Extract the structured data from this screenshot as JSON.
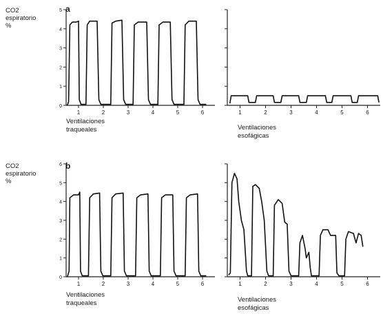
{
  "figure": {
    "row_a": {
      "y_label": "CO2\nespiratorio\n%",
      "panel_label": "a"
    },
    "row_b": {
      "y_label": "CO2\nespiratorio\n%",
      "panel_label": "b"
    }
  },
  "chart_data": [
    {
      "id": "a-left",
      "type": "line",
      "xlabel": "Ventilaciones\ntraqueales",
      "ylabel": "CO2 espiratorio %",
      "xlim": [
        0.5,
        6.5
      ],
      "ylim": [
        0,
        5
      ],
      "x_ticks": [
        1,
        2,
        3,
        4,
        5,
        6
      ],
      "y_ticks": [
        0,
        1,
        2,
        3,
        4,
        5
      ],
      "y_tick_labels": [
        "0",
        "1",
        "2",
        "3",
        "4",
        "5"
      ],
      "series": [
        {
          "values": [
            [
              0.55,
              0
            ],
            [
              0.6,
              0.2
            ],
            [
              0.65,
              4.2
            ],
            [
              0.75,
              4.35
            ],
            [
              0.9,
              4.35
            ],
            [
              1.0,
              4.4
            ],
            [
              1.03,
              0.3
            ],
            [
              1.1,
              0.05
            ],
            [
              1.3,
              0.05
            ],
            [
              1.35,
              4.2
            ],
            [
              1.45,
              4.4
            ],
            [
              1.75,
              4.4
            ],
            [
              1.82,
              0.3
            ],
            [
              1.9,
              0.05
            ],
            [
              2.3,
              0.05
            ],
            [
              2.35,
              4.3
            ],
            [
              2.5,
              4.4
            ],
            [
              2.75,
              4.45
            ],
            [
              2.82,
              0.3
            ],
            [
              2.9,
              0.05
            ],
            [
              3.2,
              0.05
            ],
            [
              3.25,
              4.2
            ],
            [
              3.4,
              4.35
            ],
            [
              3.75,
              4.35
            ],
            [
              3.82,
              0.3
            ],
            [
              3.9,
              0.05
            ],
            [
              4.2,
              0.05
            ],
            [
              4.25,
              4.2
            ],
            [
              4.4,
              4.35
            ],
            [
              4.7,
              4.35
            ],
            [
              4.77,
              0.3
            ],
            [
              4.85,
              0.05
            ],
            [
              5.25,
              0.05
            ],
            [
              5.3,
              4.2
            ],
            [
              5.45,
              4.4
            ],
            [
              5.75,
              4.4
            ],
            [
              5.82,
              0.3
            ],
            [
              5.9,
              0.05
            ],
            [
              6.1,
              0.05
            ],
            [
              6.15,
              0.05
            ]
          ]
        }
      ]
    },
    {
      "id": "a-right",
      "type": "line",
      "xlabel": "Ventilaciones\nesofágicas",
      "ylabel": "",
      "xlim": [
        0.5,
        6.5
      ],
      "ylim": [
        0,
        5
      ],
      "x_ticks": [
        1,
        2,
        3,
        4,
        5,
        6
      ],
      "y_ticks": [
        0,
        1,
        2,
        3,
        4,
        5
      ],
      "y_tick_labels": [],
      "series": [
        {
          "values": [
            [
              0.6,
              0.1
            ],
            [
              0.65,
              0.5
            ],
            [
              1.3,
              0.5
            ],
            [
              1.35,
              0.15
            ],
            [
              1.6,
              0.15
            ],
            [
              1.65,
              0.5
            ],
            [
              2.3,
              0.5
            ],
            [
              2.35,
              0.15
            ],
            [
              2.6,
              0.15
            ],
            [
              2.65,
              0.5
            ],
            [
              3.3,
              0.5
            ],
            [
              3.35,
              0.15
            ],
            [
              3.6,
              0.15
            ],
            [
              3.65,
              0.5
            ],
            [
              4.35,
              0.5
            ],
            [
              4.4,
              0.15
            ],
            [
              4.6,
              0.15
            ],
            [
              4.65,
              0.5
            ],
            [
              5.35,
              0.5
            ],
            [
              5.4,
              0.15
            ],
            [
              5.6,
              0.15
            ],
            [
              5.65,
              0.5
            ],
            [
              6.4,
              0.5
            ],
            [
              6.45,
              0.15
            ]
          ]
        }
      ]
    },
    {
      "id": "b-left",
      "type": "line",
      "xlabel": "Ventilaciones\ntraqueales",
      "ylabel": "CO2 espiratorio %",
      "xlim": [
        0.5,
        6.5
      ],
      "ylim": [
        0,
        6
      ],
      "x_ticks": [
        1,
        2,
        3,
        4,
        5,
        6
      ],
      "y_ticks": [
        0,
        1,
        2,
        3,
        4,
        5,
        6
      ],
      "y_tick_labels": [
        "0",
        "1",
        "2",
        "3",
        "4",
        "5",
        "6"
      ],
      "series": [
        {
          "values": [
            [
              0.55,
              0
            ],
            [
              0.62,
              0.3
            ],
            [
              0.65,
              4.2
            ],
            [
              0.8,
              4.35
            ],
            [
              1.0,
              4.35
            ],
            [
              1.05,
              4.5
            ],
            [
              1.08,
              0.3
            ],
            [
              1.15,
              0.05
            ],
            [
              1.4,
              0.05
            ],
            [
              1.45,
              4.2
            ],
            [
              1.6,
              4.4
            ],
            [
              1.85,
              4.45
            ],
            [
              1.9,
              0.3
            ],
            [
              1.98,
              0.05
            ],
            [
              2.3,
              0.05
            ],
            [
              2.35,
              4.2
            ],
            [
              2.5,
              4.4
            ],
            [
              2.8,
              4.45
            ],
            [
              2.85,
              0.3
            ],
            [
              2.93,
              0.05
            ],
            [
              3.3,
              0.05
            ],
            [
              3.35,
              4.2
            ],
            [
              3.5,
              4.35
            ],
            [
              3.8,
              4.4
            ],
            [
              3.85,
              0.3
            ],
            [
              3.93,
              0.05
            ],
            [
              4.3,
              0.05
            ],
            [
              4.35,
              4.2
            ],
            [
              4.5,
              4.35
            ],
            [
              4.8,
              4.35
            ],
            [
              4.85,
              0.3
            ],
            [
              4.93,
              0.05
            ],
            [
              5.3,
              0.05
            ],
            [
              5.35,
              4.2
            ],
            [
              5.5,
              4.35
            ],
            [
              5.8,
              4.4
            ],
            [
              5.85,
              0.3
            ],
            [
              5.93,
              0.05
            ],
            [
              6.1,
              0.05
            ],
            [
              6.15,
              0.05
            ]
          ]
        }
      ]
    },
    {
      "id": "b-right",
      "type": "line",
      "xlabel": "Ventilaciones\nesofágicas",
      "ylabel": "",
      "xlim": [
        0.5,
        6.5
      ],
      "ylim": [
        0,
        6
      ],
      "x_ticks": [
        1,
        2,
        3,
        4,
        5,
        6
      ],
      "y_ticks": [
        0,
        1,
        2,
        3,
        4,
        5,
        6
      ],
      "y_tick_labels": [],
      "series": [
        {
          "values": [
            [
              0.55,
              0.1
            ],
            [
              0.62,
              0.2
            ],
            [
              0.68,
              5.0
            ],
            [
              0.78,
              5.5
            ],
            [
              0.88,
              5.2
            ],
            [
              0.95,
              4.0
            ],
            [
              1.05,
              3.0
            ],
            [
              1.15,
              2.5
            ],
            [
              1.25,
              0.3
            ],
            [
              1.3,
              0.05
            ],
            [
              1.45,
              0.05
            ],
            [
              1.5,
              4.8
            ],
            [
              1.6,
              4.9
            ],
            [
              1.75,
              4.7
            ],
            [
              1.85,
              4.0
            ],
            [
              1.95,
              3.0
            ],
            [
              2.05,
              0.3
            ],
            [
              2.12,
              0.05
            ],
            [
              2.3,
              0.05
            ],
            [
              2.35,
              3.8
            ],
            [
              2.5,
              4.1
            ],
            [
              2.65,
              3.9
            ],
            [
              2.75,
              2.9
            ],
            [
              2.85,
              2.8
            ],
            [
              2.92,
              0.3
            ],
            [
              3.0,
              0.05
            ],
            [
              3.3,
              0.05
            ],
            [
              3.35,
              1.8
            ],
            [
              3.45,
              2.2
            ],
            [
              3.55,
              1.5
            ],
            [
              3.6,
              1.0
            ],
            [
              3.7,
              1.3
            ],
            [
              3.75,
              0.5
            ],
            [
              3.8,
              0.05
            ],
            [
              4.1,
              0.05
            ],
            [
              4.15,
              2.2
            ],
            [
              4.25,
              2.5
            ],
            [
              4.45,
              2.5
            ],
            [
              4.55,
              2.2
            ],
            [
              4.75,
              2.2
            ],
            [
              4.8,
              0.2
            ],
            [
              4.88,
              0.05
            ],
            [
              5.1,
              0.05
            ],
            [
              5.15,
              2.0
            ],
            [
              5.25,
              2.4
            ],
            [
              5.45,
              2.3
            ],
            [
              5.55,
              1.8
            ],
            [
              5.65,
              2.3
            ],
            [
              5.75,
              2.2
            ],
            [
              5.82,
              1.6
            ]
          ]
        }
      ]
    }
  ]
}
